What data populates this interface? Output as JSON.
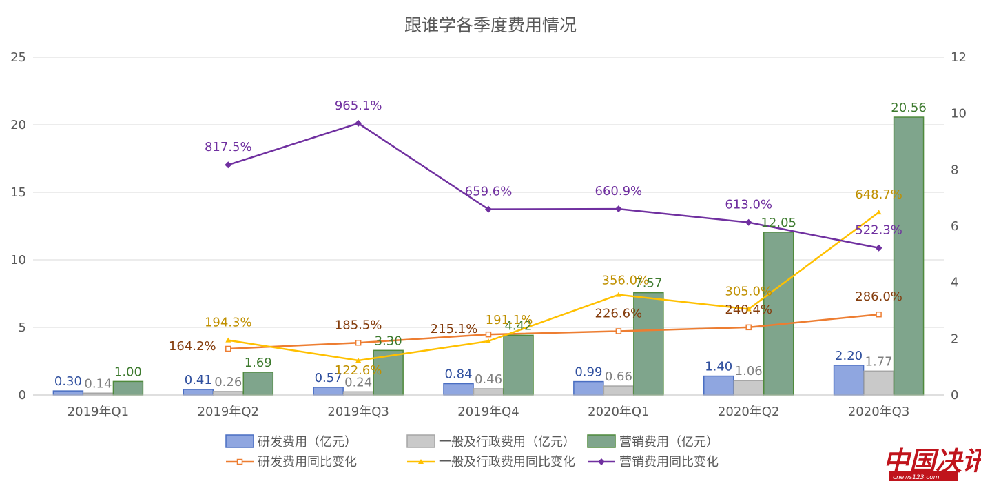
{
  "chart_data": {
    "type": "bar",
    "title": "跟谁学各季度费用情况",
    "categories": [
      "2019年Q1",
      "2019年Q2",
      "2019年Q3",
      "2019年Q4",
      "2020年Q1",
      "2020年Q2",
      "2020年Q3"
    ],
    "ylim": [
      0,
      25
    ],
    "yticks": [
      "0",
      "5",
      "10",
      "15",
      "20",
      "25"
    ],
    "y2lim": [
      0,
      12
    ],
    "y2ticks": [
      "0",
      "2",
      "4",
      "6",
      "8",
      "10",
      "12"
    ],
    "grid": true,
    "legend_position": "bottom",
    "bar_series": [
      {
        "name": "研发费用（亿元）",
        "values": [
          0.3,
          0.41,
          0.57,
          0.84,
          0.99,
          1.4,
          2.2
        ],
        "labels": [
          "0.30",
          "0.41",
          "0.57",
          "0.84",
          "0.99",
          "1.40",
          "2.20"
        ],
        "color": "#8fa6e0",
        "stroke": "#4a6ec2",
        "label_color": "#2f4f9e"
      },
      {
        "name": "一般及行政费用（亿元）",
        "values": [
          0.14,
          0.26,
          0.24,
          0.46,
          0.66,
          1.06,
          1.77
        ],
        "labels": [
          "0.14",
          "0.26",
          "0.24",
          "0.46",
          "0.66",
          "1.06",
          "1.77"
        ],
        "color": "#c9c9c9",
        "stroke": "#a6a6a6",
        "label_color": "#7f7f7f"
      },
      {
        "name": "营销费用（亿元）",
        "values": [
          1.0,
          1.69,
          3.3,
          4.42,
          7.57,
          12.05,
          20.56
        ],
        "labels": [
          "1.00",
          "1.69",
          "3.30",
          "4.42",
          "7.57",
          "12.05",
          "20.56"
        ],
        "color": "#7fa58c",
        "stroke": "#4f8a3c",
        "label_color": "#3d7a2e"
      }
    ],
    "line_series": [
      {
        "name": "研发费用同比变化",
        "values": [
          null,
          1.642,
          1.855,
          2.151,
          2.266,
          2.404,
          2.86
        ],
        "labels": [
          null,
          "164.2%",
          "185.5%",
          "215.1%",
          "226.6%",
          "240.4%",
          "286.0%"
        ],
        "color": "#ed7d31",
        "label_color": "#843c0c",
        "marker": "square"
      },
      {
        "name": "一般及行政费用同比变化",
        "values": [
          null,
          1.943,
          1.226,
          1.911,
          3.56,
          3.05,
          6.487
        ],
        "labels": [
          null,
          "194.3%",
          "122.6%",
          "191.1%",
          "356.0%",
          "305.0%",
          "648.7%"
        ],
        "color": "#ffc000",
        "label_color": "#c09000",
        "marker": "triangle"
      },
      {
        "name": "营销费用同比变化",
        "values": [
          null,
          8.175,
          9.651,
          6.596,
          6.609,
          6.13,
          5.223
        ],
        "labels": [
          null,
          "817.5%",
          "965.1%",
          "659.6%",
          "660.9%",
          "613.0%",
          "522.3%"
        ],
        "color": "#7030a0",
        "label_color": "#7030a0",
        "marker": "diamond"
      }
    ]
  },
  "watermark": {
    "main": "中国决讯",
    "sub": "cnews123.com"
  }
}
